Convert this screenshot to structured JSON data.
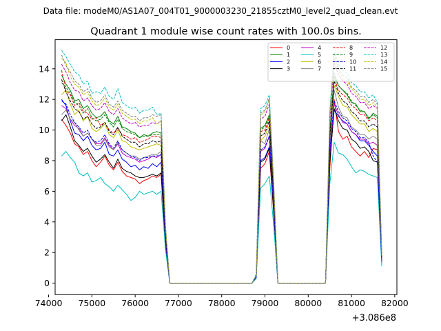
{
  "chart_data": {
    "type": "line",
    "suptitle": "Data file: modeM0/AS1A07_004T01_9000003230_21855cztM0_level2_quad_clean.evt",
    "title": "Quadrant 1 module wise count rates with 100.0s bins.",
    "xlabel": "",
    "ylabel": "",
    "x_offset_label": "+3.086e8",
    "xlim": [
      74150,
      82050
    ],
    "ylim": [
      -0.75,
      15.9
    ],
    "xticks": [
      74000,
      75000,
      76000,
      77000,
      78000,
      79000,
      80000,
      81000,
      82000
    ],
    "yticks": [
      0,
      2,
      4,
      6,
      8,
      10,
      12,
      14
    ],
    "legend_loc": "upper-right",
    "legend_ncol": 4,
    "x": [
      74300,
      74400,
      74500,
      74600,
      74700,
      74800,
      74900,
      75000,
      75100,
      75200,
      75300,
      75400,
      75500,
      75600,
      75700,
      75800,
      75900,
      76000,
      76100,
      76200,
      76300,
      76400,
      76500,
      76600,
      76700,
      76800,
      78700,
      78800,
      78900,
      79000,
      79100,
      79200,
      79300,
      80400,
      80500,
      80600,
      80700,
      80800,
      80900,
      81000,
      81100,
      81200,
      81300,
      81400,
      81500,
      81600,
      81700
    ],
    "series": [
      {
        "name": "0",
        "color": "#ff0000",
        "dash": false,
        "values": [
          10.7,
          10.3,
          9.8,
          9.1,
          8.9,
          8.4,
          8.6,
          8.0,
          7.6,
          7.9,
          8.3,
          7.7,
          7.4,
          7.9,
          7.3,
          7.0,
          6.9,
          6.8,
          6.5,
          6.7,
          6.8,
          7.0,
          6.9,
          7.1,
          2.5,
          0.0,
          0.0,
          0.4,
          7.5,
          7.8,
          8.6,
          4.6,
          0.0,
          0.0,
          7.5,
          12.0,
          9.9,
          9.4,
          9.6,
          8.9,
          8.6,
          8.3,
          8.6,
          8.2,
          8.8,
          8.7,
          1.3
        ]
      },
      {
        "name": "1",
        "color": "#008000",
        "dash": false,
        "values": [
          13.6,
          13.0,
          12.6,
          11.9,
          12.0,
          11.4,
          11.6,
          11.1,
          10.8,
          10.9,
          11.2,
          10.6,
          10.4,
          10.9,
          10.2,
          10.1,
          9.9,
          9.8,
          9.5,
          9.7,
          9.6,
          9.8,
          9.9,
          9.8,
          3.4,
          0.0,
          0.0,
          0.5,
          10.1,
          10.3,
          11.0,
          6.1,
          0.0,
          0.0,
          9.9,
          13.5,
          12.9,
          12.6,
          12.3,
          11.8,
          11.7,
          11.2,
          11.2,
          10.7,
          11.1,
          10.9,
          1.8
        ]
      },
      {
        "name": "2",
        "color": "#0000ff",
        "dash": false,
        "values": [
          12.0,
          11.6,
          10.6,
          9.8,
          9.7,
          9.3,
          9.6,
          9.0,
          8.7,
          8.8,
          9.2,
          8.4,
          8.3,
          8.7,
          8.1,
          7.9,
          7.6,
          7.7,
          7.4,
          7.6,
          7.5,
          7.8,
          7.6,
          7.9,
          2.8,
          0.0,
          0.0,
          0.4,
          8.0,
          8.2,
          8.9,
          4.8,
          0.0,
          0.0,
          8.1,
          11.3,
          10.9,
          10.6,
          10.4,
          9.9,
          9.7,
          9.3,
          9.3,
          9.0,
          8.6,
          8.3,
          1.5
        ]
      },
      {
        "name": "3",
        "color": "#000000",
        "dash": false,
        "values": [
          10.6,
          11.0,
          10.2,
          9.3,
          9.0,
          8.6,
          8.8,
          8.3,
          7.9,
          8.1,
          8.4,
          7.9,
          7.5,
          8.1,
          7.5,
          7.3,
          7.2,
          7.0,
          6.9,
          6.9,
          7.0,
          7.1,
          7.0,
          7.2,
          2.6,
          0.0,
          0.0,
          0.4,
          7.9,
          8.1,
          8.8,
          4.7,
          0.0,
          0.0,
          7.9,
          11.4,
          10.6,
          10.1,
          10.0,
          9.4,
          9.2,
          8.8,
          8.9,
          8.6,
          8.0,
          7.9,
          1.4
        ]
      },
      {
        "name": "4",
        "color": "#bf00bf",
        "dash": false,
        "values": [
          11.6,
          11.4,
          10.7,
          10.3,
          10.1,
          9.6,
          9.8,
          9.4,
          9.1,
          9.1,
          9.5,
          9.0,
          8.7,
          9.1,
          8.5,
          8.3,
          8.2,
          8.1,
          7.9,
          8.0,
          8.1,
          8.3,
          8.2,
          8.4,
          2.9,
          0.0,
          0.0,
          0.5,
          8.6,
          8.8,
          9.6,
          5.1,
          0.0,
          0.0,
          8.6,
          11.7,
          11.0,
          10.5,
          10.4,
          9.9,
          9.7,
          9.4,
          9.4,
          9.1,
          9.2,
          9.0,
          1.5
        ]
      },
      {
        "name": "5",
        "color": "#00bfbf",
        "dash": false,
        "values": [
          8.3,
          8.6,
          8.2,
          7.9,
          7.2,
          7.0,
          7.2,
          6.6,
          6.7,
          6.9,
          6.5,
          6.3,
          6.0,
          6.4,
          6.1,
          5.8,
          5.4,
          5.6,
          6.0,
          5.8,
          5.9,
          6.0,
          5.8,
          6.0,
          2.2,
          0.0,
          0.0,
          0.3,
          6.2,
          6.5,
          7.0,
          3.8,
          0.0,
          0.0,
          6.5,
          9.2,
          8.5,
          8.4,
          8.1,
          7.6,
          7.2,
          7.4,
          7.3,
          7.1,
          7.0,
          6.9,
          1.1
        ]
      },
      {
        "name": "6",
        "color": "#bfbf00",
        "dash": false,
        "values": [
          12.3,
          12.6,
          11.7,
          11.0,
          11.3,
          10.6,
          10.9,
          10.1,
          9.9,
          10.1,
          10.4,
          9.7,
          9.5,
          10.0,
          9.3,
          9.2,
          8.9,
          8.8,
          8.7,
          8.8,
          8.9,
          9.0,
          9.1,
          9.0,
          3.1,
          0.0,
          0.0,
          0.5,
          9.3,
          9.6,
          10.3,
          5.5,
          0.0,
          0.0,
          9.3,
          12.9,
          12.2,
          11.6,
          11.5,
          11.0,
          10.7,
          10.4,
          10.4,
          9.9,
          10.1,
          9.9,
          1.6
        ]
      },
      {
        "name": "7",
        "color": "#808080",
        "dash": false,
        "values": [
          11.0,
          11.3,
          10.7,
          10.5,
          10.0,
          9.6,
          9.8,
          9.4,
          9.0,
          9.0,
          9.4,
          8.9,
          8.7,
          9.2,
          8.7,
          8.5,
          8.3,
          8.3,
          8.1,
          8.2,
          8.3,
          8.4,
          8.4,
          8.6,
          3.0,
          0.0,
          0.0,
          0.5,
          9.3,
          9.1,
          10.1,
          5.3,
          0.0,
          0.0,
          9.1,
          12.6,
          11.5,
          10.9,
          10.8,
          10.2,
          10.0,
          9.7,
          9.7,
          9.4,
          9.6,
          9.4,
          1.6
        ]
      },
      {
        "name": "8",
        "color": "#ff0000",
        "dash": true,
        "values": [
          13.9,
          12.6,
          12.3,
          11.6,
          11.8,
          11.2,
          11.1,
          10.7,
          10.8,
          10.3,
          10.5,
          10.0,
          9.8,
          10.1,
          9.7,
          9.6,
          9.4,
          9.5,
          9.2,
          9.3,
          9.4,
          9.6,
          9.6,
          9.5,
          3.3,
          0.0,
          0.0,
          0.5,
          9.9,
          10.0,
          10.8,
          5.8,
          0.0,
          0.0,
          9.8,
          13.4,
          12.6,
          12.3,
          12.1,
          11.6,
          11.4,
          11.0,
          11.0,
          10.6,
          10.8,
          10.6,
          1.7
        ]
      },
      {
        "name": "9",
        "color": "#008000",
        "dash": true,
        "values": [
          13.1,
          12.8,
          12.4,
          11.8,
          11.6,
          11.1,
          11.4,
          10.8,
          10.6,
          10.7,
          11.0,
          10.5,
          10.2,
          10.7,
          10.1,
          9.9,
          9.8,
          9.7,
          9.5,
          9.6,
          9.6,
          9.7,
          9.7,
          9.7,
          3.4,
          0.0,
          0.0,
          0.5,
          10.0,
          10.2,
          10.9,
          6.0,
          0.0,
          0.0,
          9.9,
          13.7,
          12.9,
          12.6,
          12.4,
          11.9,
          11.6,
          11.3,
          11.2,
          10.8,
          11.0,
          10.8,
          1.7
        ]
      },
      {
        "name": "10",
        "color": "#0000ff",
        "dash": true,
        "values": [
          11.9,
          11.7,
          11.0,
          10.5,
          10.2,
          9.8,
          10.0,
          9.4,
          9.2,
          9.3,
          9.7,
          9.1,
          8.8,
          9.3,
          8.7,
          8.5,
          8.3,
          8.2,
          8.0,
          8.2,
          8.2,
          8.3,
          8.3,
          8.4,
          2.9,
          0.0,
          0.0,
          0.4,
          8.7,
          8.9,
          9.6,
          5.2,
          0.0,
          0.0,
          8.7,
          11.9,
          11.2,
          10.8,
          10.6,
          10.1,
          9.9,
          9.5,
          9.5,
          9.2,
          8.3,
          7.9,
          1.5
        ]
      },
      {
        "name": "11",
        "color": "#000000",
        "dash": true,
        "values": [
          13.3,
          12.5,
          11.9,
          11.4,
          11.2,
          10.7,
          10.9,
          10.4,
          10.1,
          10.2,
          10.5,
          9.9,
          9.7,
          10.2,
          9.6,
          9.4,
          9.2,
          9.2,
          8.9,
          9.1,
          9.1,
          9.3,
          9.2,
          9.3,
          3.2,
          0.0,
          0.0,
          0.5,
          9.6,
          9.8,
          10.6,
          5.7,
          0.0,
          0.0,
          9.6,
          13.2,
          12.4,
          11.9,
          11.7,
          11.2,
          11.0,
          10.6,
          10.6,
          10.2,
          10.4,
          10.2,
          1.7
        ]
      },
      {
        "name": "12",
        "color": "#bf00bf",
        "dash": true,
        "values": [
          14.3,
          13.8,
          13.1,
          12.6,
          12.5,
          11.9,
          12.1,
          11.6,
          11.3,
          11.4,
          11.8,
          11.2,
          11.0,
          11.4,
          10.8,
          10.6,
          10.4,
          10.5,
          10.2,
          10.3,
          10.3,
          10.5,
          10.4,
          10.6,
          3.6,
          0.0,
          0.0,
          0.5,
          10.7,
          10.9,
          11.7,
          6.4,
          0.0,
          0.0,
          10.7,
          14.4,
          13.6,
          13.2,
          13.0,
          12.4,
          12.2,
          11.8,
          11.8,
          11.4,
          11.6,
          11.4,
          1.8
        ]
      },
      {
        "name": "13",
        "color": "#00bfbf",
        "dash": true,
        "values": [
          15.2,
          14.8,
          14.3,
          13.8,
          13.6,
          13.0,
          13.2,
          12.4,
          12.5,
          12.4,
          12.8,
          12.2,
          12.0,
          12.7,
          11.8,
          11.6,
          11.4,
          11.5,
          11.1,
          11.3,
          11.3,
          11.5,
          11.0,
          11.1,
          3.8,
          0.0,
          0.0,
          0.6,
          11.4,
          11.6,
          12.3,
          6.7,
          0.0,
          0.0,
          11.3,
          15.1,
          14.3,
          13.9,
          13.7,
          13.1,
          12.9,
          12.5,
          12.5,
          12.1,
          12.3,
          11.8,
          1.9
        ]
      },
      {
        "name": "14",
        "color": "#bfbf00",
        "dash": true,
        "values": [
          14.7,
          14.4,
          13.5,
          13.0,
          12.8,
          12.3,
          12.5,
          11.9,
          11.6,
          11.7,
          12.1,
          11.5,
          11.3,
          11.7,
          11.1,
          10.9,
          10.7,
          10.7,
          10.4,
          10.6,
          10.6,
          10.8,
          10.4,
          10.6,
          3.7,
          0.0,
          0.0,
          0.5,
          11.0,
          11.2,
          12.0,
          6.5,
          0.0,
          0.0,
          11.0,
          14.7,
          13.9,
          13.4,
          13.2,
          12.7,
          12.4,
          12.0,
          12.0,
          11.6,
          11.8,
          11.5,
          1.8
        ]
      },
      {
        "name": "15",
        "color": "#808080",
        "dash": true,
        "values": [
          14.9,
          14.2,
          13.8,
          13.2,
          13.0,
          12.5,
          12.7,
          12.1,
          11.8,
          11.9,
          12.3,
          11.7,
          11.5,
          11.9,
          11.3,
          11.1,
          10.9,
          10.9,
          10.6,
          10.8,
          10.8,
          11.0,
          10.9,
          11.0,
          3.7,
          0.0,
          0.0,
          0.5,
          11.1,
          11.3,
          12.1,
          6.6,
          0.0,
          0.0,
          11.1,
          14.9,
          14.0,
          13.6,
          13.4,
          12.8,
          12.6,
          12.2,
          12.2,
          11.8,
          12.0,
          11.7,
          1.8
        ]
      }
    ]
  }
}
